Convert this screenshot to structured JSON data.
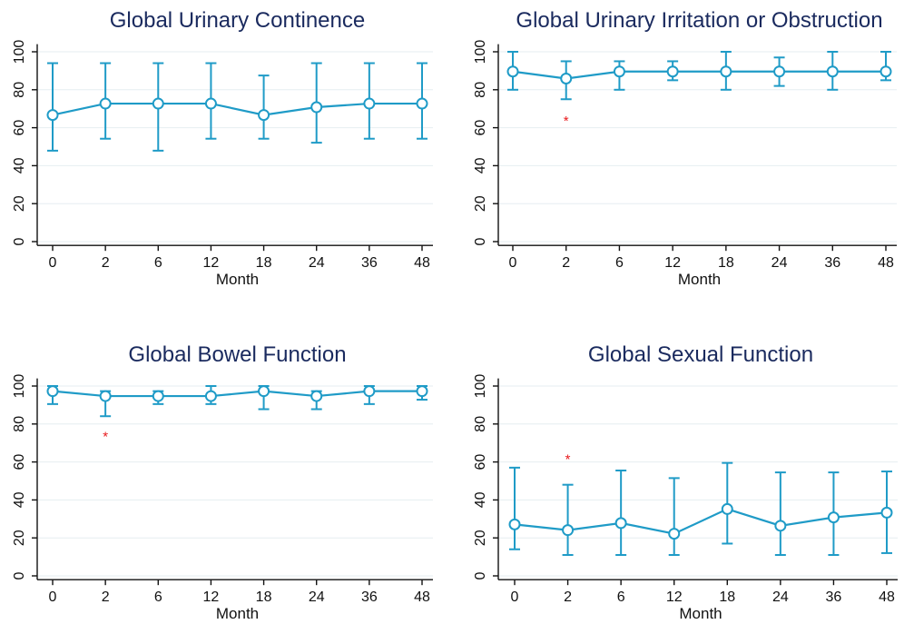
{
  "chart_data": [
    {
      "type": "line",
      "title": "Global Urinary Continence",
      "xlabel": "Month",
      "ylabel": "",
      "categories": [
        "0",
        "2",
        "6",
        "12",
        "18",
        "24",
        "36",
        "48"
      ],
      "yticks": [
        0,
        20,
        40,
        60,
        80,
        100
      ],
      "ylim": [
        -2,
        104
      ],
      "grid": true,
      "legend": "none",
      "series": [
        {
          "values": [
            66.7,
            72.7,
            72.7,
            72.7,
            66.7,
            70.8,
            72.7,
            72.7
          ],
          "lower": [
            47.9,
            54.2,
            47.9,
            54.2,
            54.2,
            52.1,
            54.2,
            54.2
          ],
          "upper": [
            94,
            94,
            94,
            94,
            87.5,
            94,
            94,
            94
          ],
          "color": "#1f9bc7"
        }
      ],
      "annotations": []
    },
    {
      "type": "line",
      "title": "Global Urinary Irritation or Obstruction",
      "xlabel": "Month",
      "ylabel": "",
      "categories": [
        "0",
        "2",
        "6",
        "12",
        "18",
        "24",
        "36",
        "48"
      ],
      "yticks": [
        0,
        20,
        40,
        60,
        80,
        100
      ],
      "ylim": [
        -2,
        104
      ],
      "grid": true,
      "legend": "none",
      "series": [
        {
          "values": [
            89.6,
            85.9,
            89.6,
            89.6,
            89.6,
            89.6,
            89.6,
            89.6
          ],
          "lower": [
            80,
            75,
            80,
            85,
            80,
            82,
            80,
            85
          ],
          "upper": [
            100,
            95,
            95,
            95,
            100,
            97,
            100,
            100
          ],
          "color": "#1f9bc7"
        }
      ],
      "annotations": [
        {
          "text": "*",
          "category": "2",
          "y": 64,
          "color": "#e8191c"
        }
      ]
    },
    {
      "type": "line",
      "title": "Global Bowel Function",
      "xlabel": "Month",
      "ylabel": "",
      "categories": [
        "0",
        "2",
        "6",
        "12",
        "18",
        "24",
        "36",
        "48"
      ],
      "yticks": [
        0,
        20,
        40,
        60,
        80,
        100
      ],
      "ylim": [
        -2,
        104
      ],
      "grid": true,
      "legend": "none",
      "series": [
        {
          "values": [
            97.3,
            94.7,
            94.7,
            94.7,
            97.3,
            94.7,
            97.3,
            97.3
          ],
          "lower": [
            90.5,
            84.1,
            90.5,
            90.5,
            87.8,
            87.8,
            90.5,
            92.8
          ],
          "upper": [
            100,
            97.3,
            97.3,
            100,
            100,
            97.3,
            100,
            100
          ],
          "color": "#1f9bc7"
        }
      ],
      "annotations": [
        {
          "text": "*",
          "category": "2",
          "y": 74,
          "color": "#e8191c"
        }
      ]
    },
    {
      "type": "line",
      "title": "Global Sexual Function",
      "xlabel": "Month",
      "ylabel": "",
      "categories": [
        "0",
        "2",
        "6",
        "12",
        "18",
        "24",
        "36",
        "48"
      ],
      "yticks": [
        0,
        20,
        40,
        60,
        80,
        100
      ],
      "ylim": [
        -2,
        104
      ],
      "grid": true,
      "legend": "none",
      "series": [
        {
          "values": [
            27.1,
            24.1,
            27.8,
            22.2,
            35.2,
            26.4,
            30.8,
            33.3
          ],
          "lower": [
            14,
            11,
            11,
            11,
            17,
            11,
            11,
            12
          ],
          "upper": [
            57,
            48,
            55.5,
            51.5,
            59.5,
            54.5,
            54.5,
            55
          ],
          "color": "#1f9bc7"
        }
      ],
      "annotations": [
        {
          "text": "*",
          "category": "2",
          "y": 62,
          "color": "#e8191c"
        }
      ]
    }
  ]
}
